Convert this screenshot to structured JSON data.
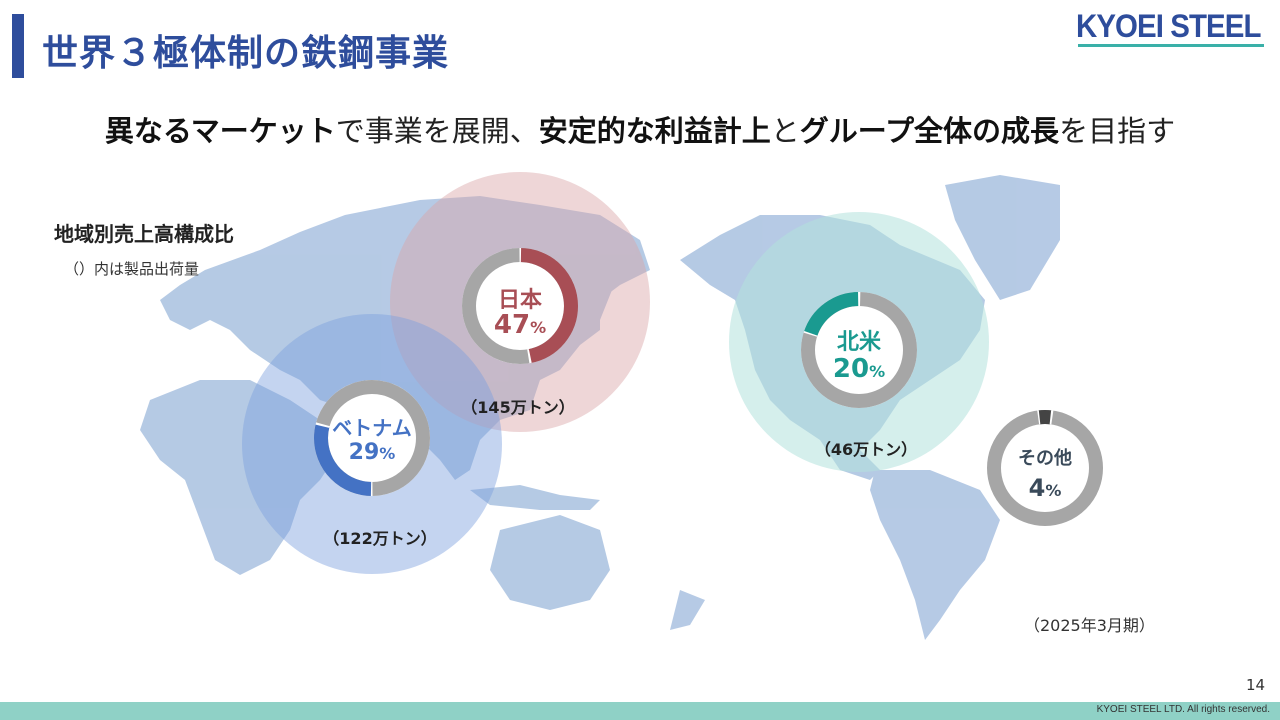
{
  "header": {
    "title": "世界３極体制の鉄鋼事業",
    "logo": "KYOEI STEEL"
  },
  "subtitle": {
    "part1": "異なるマーケット",
    "part2": "で事業を展開、",
    "part3": "安定的な利益計上",
    "part4": "と",
    "part5": "グループ全体の成長",
    "part6": "を目指す"
  },
  "legend": {
    "heading": "地域別売上高構成比",
    "note": "（）内は製品出荷量"
  },
  "regions": [
    {
      "name": "日本",
      "percent": 47,
      "percent_text": "47",
      "tons": "（145万トン）",
      "color": "#a84e55",
      "share": 0.47,
      "start": 0
    },
    {
      "name": "ベトナム",
      "percent": 29,
      "percent_text": "29",
      "tons": "（122万トン）",
      "color": "#4472c4",
      "share": 0.29,
      "start": 0.5
    },
    {
      "name": "北米",
      "percent": 20,
      "percent_text": "20",
      "tons": "（46万トン）",
      "color": "#1a9a90",
      "share": 0.2,
      "start": 0.8
    },
    {
      "name": "その他",
      "percent": 4,
      "percent_text": "4",
      "tons": "",
      "color": "#444444",
      "share": 0.04,
      "start": 0.98
    }
  ],
  "percent_unit": "%",
  "period": "（2025年3月期）",
  "page_number": "14",
  "copyright": "KYOEI STEEL LTD.  All rights reserved."
}
